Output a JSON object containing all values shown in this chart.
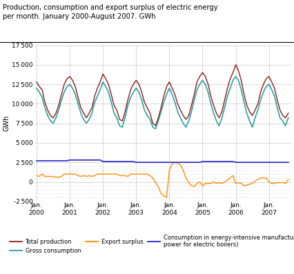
{
  "title": "Production, consumption and export surplus of electric energy\nper month. January 2000-August 2007. GWh",
  "ylabel": "GWh",
  "yticks": [
    -2500,
    0,
    2500,
    5000,
    7500,
    10000,
    12500,
    15000,
    17500
  ],
  "ylim": [
    -2500,
    17500
  ],
  "bg_color": "#ffffff",
  "grid_color": "#c8c8c8",
  "line_colors": {
    "production": "#8b1a1a",
    "consumption": "#2aa0a0",
    "export": "#ff8c00",
    "industry": "#2222cc"
  },
  "legend_labels": [
    "Total production",
    "Gross consumption",
    "Export surplus",
    "Consumption in energy-intensive manufacturing (excluding occasional\npower for electric boilers)"
  ],
  "production": [
    12800,
    12200,
    11800,
    10200,
    9200,
    8500,
    8200,
    8800,
    9800,
    11200,
    12500,
    13200,
    13500,
    13000,
    12200,
    10800,
    9500,
    8800,
    8200,
    8800,
    9500,
    11000,
    12000,
    12800,
    13800,
    13200,
    12500,
    11200,
    9800,
    9200,
    8000,
    7800,
    9000,
    10500,
    11800,
    12500,
    13000,
    12500,
    11500,
    10200,
    9500,
    8800,
    7500,
    7200,
    8200,
    9500,
    11000,
    12200,
    12800,
    12000,
    11200,
    10000,
    9200,
    8500,
    8000,
    8500,
    9800,
    11200,
    12800,
    13500,
    14000,
    13500,
    12500,
    11000,
    9800,
    8800,
    8200,
    9000,
    10500,
    12000,
    13200,
    14000,
    15000,
    14200,
    13000,
    11200,
    9800,
    9000,
    8500,
    9200,
    10000,
    11500,
    12500,
    13200,
    13500,
    12800,
    12000,
    10500,
    9200,
    8500,
    8200,
    8800
  ],
  "consumption": [
    12000,
    11500,
    10800,
    9500,
    8500,
    7800,
    7500,
    8200,
    9200,
    10500,
    11500,
    12200,
    12500,
    12000,
    11200,
    10000,
    8800,
    8000,
    7500,
    8000,
    8800,
    10200,
    11000,
    11800,
    12800,
    12200,
    11500,
    10200,
    8800,
    8200,
    7200,
    7000,
    8200,
    9800,
    10800,
    11500,
    12000,
    11500,
    10500,
    9200,
    8500,
    8000,
    7000,
    6800,
    7800,
    9000,
    10200,
    11200,
    12000,
    11200,
    10200,
    9000,
    8200,
    7500,
    7000,
    7800,
    9000,
    10500,
    11800,
    12500,
    13000,
    12500,
    11500,
    10000,
    8800,
    7800,
    7200,
    8200,
    9500,
    11000,
    12000,
    13000,
    13500,
    13000,
    11800,
    10200,
    8800,
    7800,
    7000,
    8200,
    9200,
    10500,
    11500,
    12200,
    12500,
    11800,
    11000,
    9500,
    8200,
    7800,
    7200,
    8200
  ],
  "export": [
    800,
    700,
    1000,
    700,
    700,
    700,
    700,
    600,
    600,
    700,
    1000,
    1000,
    1000,
    1000,
    1000,
    800,
    700,
    800,
    700,
    800,
    700,
    800,
    1000,
    1000,
    1000,
    1000,
    1000,
    1000,
    1000,
    1000,
    800,
    800,
    800,
    700,
    1000,
    1000,
    1000,
    1000,
    1000,
    1000,
    1000,
    800,
    500,
    -100,
    -600,
    -1500,
    -1800,
    -2000,
    1500,
    2300,
    2500,
    2400,
    2200,
    1500,
    500,
    -100,
    -500,
    -600,
    -200,
    0,
    -500,
    -200,
    -200,
    -200,
    0,
    -200,
    -100,
    -200,
    0,
    200,
    500,
    800,
    -200,
    -100,
    -200,
    -500,
    -400,
    -300,
    -200,
    100,
    300,
    500,
    500,
    500,
    0,
    -200,
    -200,
    -100,
    -100,
    -100,
    -200,
    300
  ],
  "industry": [
    2700,
    2700,
    2700,
    2700,
    2700,
    2700,
    2700,
    2700,
    2700,
    2700,
    2700,
    2700,
    2800,
    2800,
    2800,
    2800,
    2800,
    2800,
    2800,
    2800,
    2800,
    2800,
    2800,
    2800,
    2600,
    2600,
    2600,
    2600,
    2600,
    2600,
    2600,
    2600,
    2600,
    2600,
    2600,
    2600,
    2500,
    2500,
    2500,
    2500,
    2500,
    2500,
    2500,
    2500,
    2500,
    2500,
    2500,
    2500,
    2500,
    2500,
    2500,
    2500,
    2500,
    2500,
    2500,
    2500,
    2500,
    2500,
    2500,
    2500,
    2600,
    2600,
    2600,
    2600,
    2600,
    2600,
    2600,
    2600,
    2600,
    2600,
    2600,
    2600,
    2500,
    2500,
    2500,
    2500,
    2500,
    2500,
    2500,
    2500,
    2500,
    2500,
    2500,
    2500,
    2500,
    2500,
    2500,
    2500,
    2500,
    2500,
    2500,
    2500
  ]
}
